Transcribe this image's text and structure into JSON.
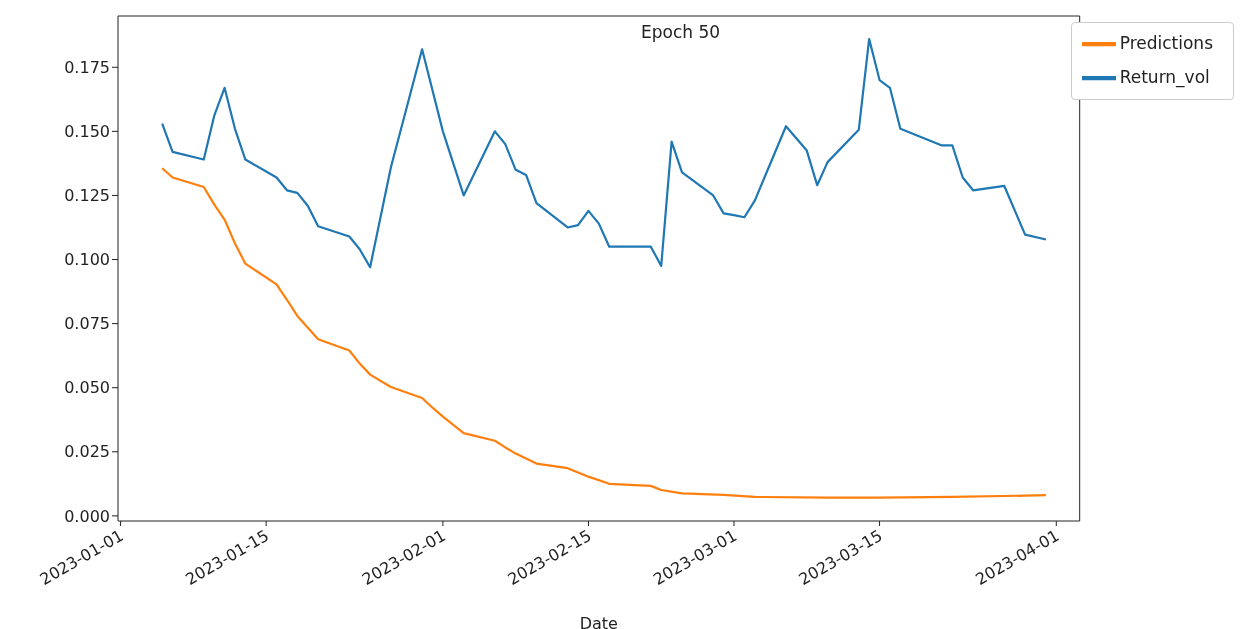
{
  "chart_data": {
    "type": "line",
    "title": "Epoch 50",
    "xlabel": "Date",
    "xlim": [
      "2022-12-31T18:00",
      "2023-04-03T06:00"
    ],
    "xticks": [
      "2023-01-01",
      "2023-01-15",
      "2023-02-01",
      "2023-02-15",
      "2023-03-01",
      "2023-03-15",
      "2023-04-01"
    ],
    "ylim": [
      -0.002,
      0.195
    ],
    "yticks": [
      {
        "value": 0,
        "label": "0.000"
      },
      {
        "value": 0.025,
        "label": "0.025"
      },
      {
        "value": 0.05,
        "label": "0.050"
      },
      {
        "value": 0.075,
        "label": "0.075"
      },
      {
        "value": 0.1,
        "label": "0.100"
      },
      {
        "value": 0.125,
        "label": "0.125"
      },
      {
        "value": 0.15,
        "label": "0.150"
      },
      {
        "value": 0.175,
        "label": "0.175"
      }
    ],
    "grid": false,
    "legend": "top right",
    "marker": "none",
    "line_style": "solid",
    "series": [
      {
        "name": "Return_vol",
        "color": "#1f77b4",
        "x": [
          "2023-01-05",
          "2023-01-06",
          "2023-01-09",
          "2023-01-10",
          "2023-01-11",
          "2023-01-12",
          "2023-01-13",
          "2023-01-16",
          "2023-01-17",
          "2023-01-18",
          "2023-01-19",
          "2023-01-20",
          "2023-01-23",
          "2023-01-24",
          "2023-01-25",
          "2023-01-27",
          "2023-01-30",
          "2023-02-01",
          "2023-02-03",
          "2023-02-06",
          "2023-02-07",
          "2023-02-08",
          "2023-02-09",
          "2023-02-10",
          "2023-02-13",
          "2023-02-14",
          "2023-02-15",
          "2023-02-16",
          "2023-02-17",
          "2023-02-21",
          "2023-02-22",
          "2023-02-23",
          "2023-02-24",
          "2023-02-27",
          "2023-02-28",
          "2023-03-01",
          "2023-03-02",
          "2023-03-03",
          "2023-03-06",
          "2023-03-08",
          "2023-03-09",
          "2023-03-10",
          "2023-03-13",
          "2023-03-14",
          "2023-03-15",
          "2023-03-16",
          "2023-03-17",
          "2023-03-21",
          "2023-03-22",
          "2023-03-23",
          "2023-03-24",
          "2023-03-27",
          "2023-03-29",
          "2023-03-31"
        ],
        "values": [
          0.153,
          0.142,
          0.139,
          0.156,
          0.167,
          0.151,
          0.139,
          0.132,
          0.127,
          0.126,
          0.121,
          0.113,
          0.109,
          0.104,
          0.097,
          0.136,
          0.182,
          0.15,
          0.125,
          0.15,
          0.145,
          0.135,
          0.133,
          0.122,
          0.1125,
          0.1134,
          0.119,
          0.114,
          0.105,
          0.105,
          0.0975,
          0.146,
          0.134,
          0.125,
          0.118,
          0.1173,
          0.1165,
          0.123,
          0.152,
          0.1425,
          0.129,
          0.138,
          0.1506,
          0.186,
          0.17,
          0.167,
          0.151,
          0.1445,
          0.1445,
          0.132,
          0.127,
          0.1287,
          0.1097,
          0.1078
        ]
      },
      {
        "name": "Predictions",
        "color": "#ff7f0e",
        "x": [
          "2023-01-05",
          "2023-01-06",
          "2023-01-09",
          "2023-01-10",
          "2023-01-11",
          "2023-01-12",
          "2023-01-13",
          "2023-01-16",
          "2023-01-17",
          "2023-01-18",
          "2023-01-20",
          "2023-01-23",
          "2023-01-24",
          "2023-01-25",
          "2023-01-27",
          "2023-01-30",
          "2023-01-31",
          "2023-02-01",
          "2023-02-03",
          "2023-02-06",
          "2023-02-07",
          "2023-02-08",
          "2023-02-10",
          "2023-02-13",
          "2023-02-14",
          "2023-02-15",
          "2023-02-17",
          "2023-02-21",
          "2023-02-22",
          "2023-02-24",
          "2023-02-28",
          "2023-03-03",
          "2023-03-10",
          "2023-03-15",
          "2023-03-22",
          "2023-03-29",
          "2023-03-31"
        ],
        "values": [
          0.1356,
          0.132,
          0.1283,
          0.1215,
          0.1156,
          0.1063,
          0.0984,
          0.0903,
          0.0843,
          0.078,
          0.0689,
          0.0645,
          0.0594,
          0.0551,
          0.0503,
          0.046,
          0.0422,
          0.0387,
          0.0323,
          0.0293,
          0.0267,
          0.0243,
          0.0204,
          0.0186,
          0.0169,
          0.0153,
          0.0125,
          0.0117,
          0.0101,
          0.0088,
          0.0082,
          0.0074,
          0.0071,
          0.0071,
          0.0074,
          0.0079,
          0.0081
        ]
      }
    ]
  }
}
